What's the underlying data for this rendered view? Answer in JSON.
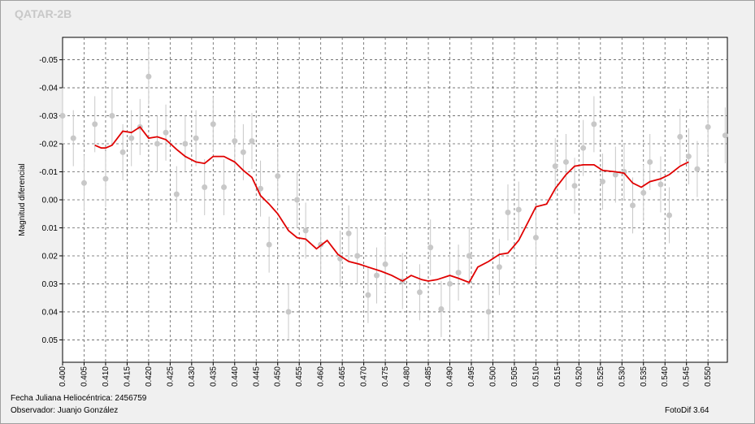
{
  "title": "QATAR-2B",
  "footer": {
    "julian_date": "Fecha Juliana Heliocéntrica: 2456759",
    "observer": "Observador: Juanjo González",
    "software": "FotoDif 3.64"
  },
  "chart_data": {
    "type": "scatter",
    "title": "QATAR-2B",
    "xlabel": "",
    "ylabel": "Magnitud diferencial",
    "xlim": [
      0.4,
      0.5545
    ],
    "ylim": [
      -0.058,
      0.058
    ],
    "y_inverted": true,
    "x_ticks": [
      "0.400",
      "0.405",
      "0.410",
      "0.415",
      "0.420",
      "0.425",
      "0.430",
      "0.435",
      "0.440",
      "0.445",
      "0.450",
      "0.455",
      "0.460",
      "0.465",
      "0.470",
      "0.475",
      "0.480",
      "0.485",
      "0.490",
      "0.495",
      "0.500",
      "0.505",
      "0.510",
      "0.515",
      "0.520",
      "0.525",
      "0.530",
      "0.535",
      "0.540",
      "0.545",
      "0.550"
    ],
    "y_ticks": [
      "-0.05",
      "-0.04",
      "-0.03",
      "-0.02",
      "-0.01",
      "0.00",
      "0.01",
      "0.02",
      "0.03",
      "0.04",
      "0.05"
    ],
    "grid": true,
    "colors": {
      "points": "#c8c8c8",
      "trend": "#e00000",
      "plot_bg": "#ffffff",
      "grid": "#606060"
    },
    "points": [
      [
        0.4,
        -0.03,
        0.01
      ],
      [
        0.4025,
        -0.022,
        0.01
      ],
      [
        0.405,
        -0.006,
        0.01
      ],
      [
        0.4075,
        -0.027,
        0.01
      ],
      [
        0.41,
        -0.0075,
        0.01
      ],
      [
        0.4115,
        -0.03,
        0.01
      ],
      [
        0.414,
        -0.017,
        0.01
      ],
      [
        0.416,
        -0.022,
        0.01
      ],
      [
        0.418,
        -0.026,
        0.01
      ],
      [
        0.42,
        -0.044,
        0.01
      ],
      [
        0.422,
        -0.02,
        0.01
      ],
      [
        0.424,
        -0.024,
        0.01
      ],
      [
        0.4265,
        -0.002,
        0.01
      ],
      [
        0.4285,
        -0.02,
        0.01
      ],
      [
        0.431,
        -0.022,
        0.01
      ],
      [
        0.433,
        -0.0045,
        0.01
      ],
      [
        0.435,
        -0.027,
        0.01
      ],
      [
        0.4375,
        -0.0045,
        0.01
      ],
      [
        0.44,
        -0.021,
        0.01
      ],
      [
        0.442,
        -0.017,
        0.01
      ],
      [
        0.444,
        -0.021,
        0.01
      ],
      [
        0.446,
        -0.004,
        0.01
      ],
      [
        0.448,
        0.016,
        0.01
      ],
      [
        0.45,
        -0.0085,
        0.01
      ],
      [
        0.4525,
        0.04,
        0.01
      ],
      [
        0.4545,
        0.0,
        0.01
      ],
      [
        0.4565,
        0.011,
        0.01
      ],
      [
        0.46,
        0.016,
        0.01
      ],
      [
        0.4645,
        0.021,
        0.01
      ],
      [
        0.4665,
        0.012,
        0.01
      ],
      [
        0.4685,
        0.02,
        0.01
      ],
      [
        0.471,
        0.034,
        0.01
      ],
      [
        0.473,
        0.027,
        0.01
      ],
      [
        0.475,
        0.023,
        0.01
      ],
      [
        0.479,
        0.029,
        0.01
      ],
      [
        0.483,
        0.033,
        0.01
      ],
      [
        0.4855,
        0.017,
        0.01
      ],
      [
        0.488,
        0.039,
        0.01
      ],
      [
        0.49,
        0.03,
        0.01
      ],
      [
        0.492,
        0.026,
        0.01
      ],
      [
        0.4945,
        0.02,
        0.01
      ],
      [
        0.499,
        0.04,
        0.01
      ],
      [
        0.5015,
        0.024,
        0.01
      ],
      [
        0.5035,
        0.0045,
        0.01
      ],
      [
        0.506,
        0.0035,
        0.01
      ],
      [
        0.51,
        0.0135,
        0.01
      ],
      [
        0.5145,
        -0.012,
        0.01
      ],
      [
        0.517,
        -0.0135,
        0.01
      ],
      [
        0.519,
        -0.005,
        0.01
      ],
      [
        0.521,
        -0.0185,
        0.01
      ],
      [
        0.5235,
        -0.027,
        0.01
      ],
      [
        0.5255,
        -0.0065,
        0.01
      ],
      [
        0.5285,
        -0.009,
        0.01
      ],
      [
        0.5305,
        -0.01,
        0.01
      ],
      [
        0.5325,
        0.002,
        0.01
      ],
      [
        0.535,
        -0.0025,
        0.01
      ],
      [
        0.5365,
        -0.0135,
        0.01
      ],
      [
        0.539,
        -0.0055,
        0.01
      ],
      [
        0.541,
        0.0055,
        0.01
      ],
      [
        0.5435,
        -0.0225,
        0.01
      ],
      [
        0.5455,
        -0.0155,
        0.01
      ],
      [
        0.5475,
        -0.011,
        0.01
      ],
      [
        0.55,
        -0.026,
        0.01
      ],
      [
        0.554,
        -0.023,
        0.01
      ]
    ],
    "trend": [
      [
        0.4075,
        -0.0195
      ],
      [
        0.409,
        -0.0185
      ],
      [
        0.41,
        -0.0185
      ],
      [
        0.4115,
        -0.0195
      ],
      [
        0.414,
        -0.0245
      ],
      [
        0.416,
        -0.024
      ],
      [
        0.418,
        -0.026
      ],
      [
        0.42,
        -0.022
      ],
      [
        0.422,
        -0.0225
      ],
      [
        0.424,
        -0.0215
      ],
      [
        0.4265,
        -0.018
      ],
      [
        0.4285,
        -0.0155
      ],
      [
        0.431,
        -0.0135
      ],
      [
        0.433,
        -0.013
      ],
      [
        0.435,
        -0.0155
      ],
      [
        0.4375,
        -0.0155
      ],
      [
        0.44,
        -0.0135
      ],
      [
        0.442,
        -0.0105
      ],
      [
        0.444,
        -0.008
      ],
      [
        0.446,
        -0.0015
      ],
      [
        0.448,
        0.0015
      ],
      [
        0.45,
        0.005
      ],
      [
        0.4525,
        0.011
      ],
      [
        0.4545,
        0.0135
      ],
      [
        0.4565,
        0.014
      ],
      [
        0.459,
        0.0175
      ],
      [
        0.4615,
        0.0145
      ],
      [
        0.464,
        0.0195
      ],
      [
        0.4665,
        0.022
      ],
      [
        0.469,
        0.023
      ],
      [
        0.471,
        0.024
      ],
      [
        0.474,
        0.0255
      ],
      [
        0.4765,
        0.027
      ],
      [
        0.479,
        0.029
      ],
      [
        0.481,
        0.027
      ],
      [
        0.4835,
        0.0285
      ],
      [
        0.485,
        0.029
      ],
      [
        0.487,
        0.0285
      ],
      [
        0.49,
        0.027
      ],
      [
        0.492,
        0.028
      ],
      [
        0.4945,
        0.0295
      ],
      [
        0.4965,
        0.024
      ],
      [
        0.499,
        0.022
      ],
      [
        0.5015,
        0.0195
      ],
      [
        0.5035,
        0.019
      ],
      [
        0.506,
        0.0145
      ],
      [
        0.5085,
        0.007
      ],
      [
        0.51,
        0.0025
      ],
      [
        0.5125,
        0.0015
      ],
      [
        0.5145,
        -0.004
      ],
      [
        0.517,
        -0.009
      ],
      [
        0.519,
        -0.012
      ],
      [
        0.521,
        -0.0125
      ],
      [
        0.5235,
        -0.0125
      ],
      [
        0.5255,
        -0.0105
      ],
      [
        0.5285,
        -0.01
      ],
      [
        0.5305,
        -0.0095
      ],
      [
        0.5325,
        -0.006
      ],
      [
        0.5345,
        -0.0045
      ],
      [
        0.5365,
        -0.0065
      ],
      [
        0.539,
        -0.0075
      ],
      [
        0.541,
        -0.009
      ],
      [
        0.5435,
        -0.012
      ],
      [
        0.5455,
        -0.0135
      ]
    ]
  }
}
